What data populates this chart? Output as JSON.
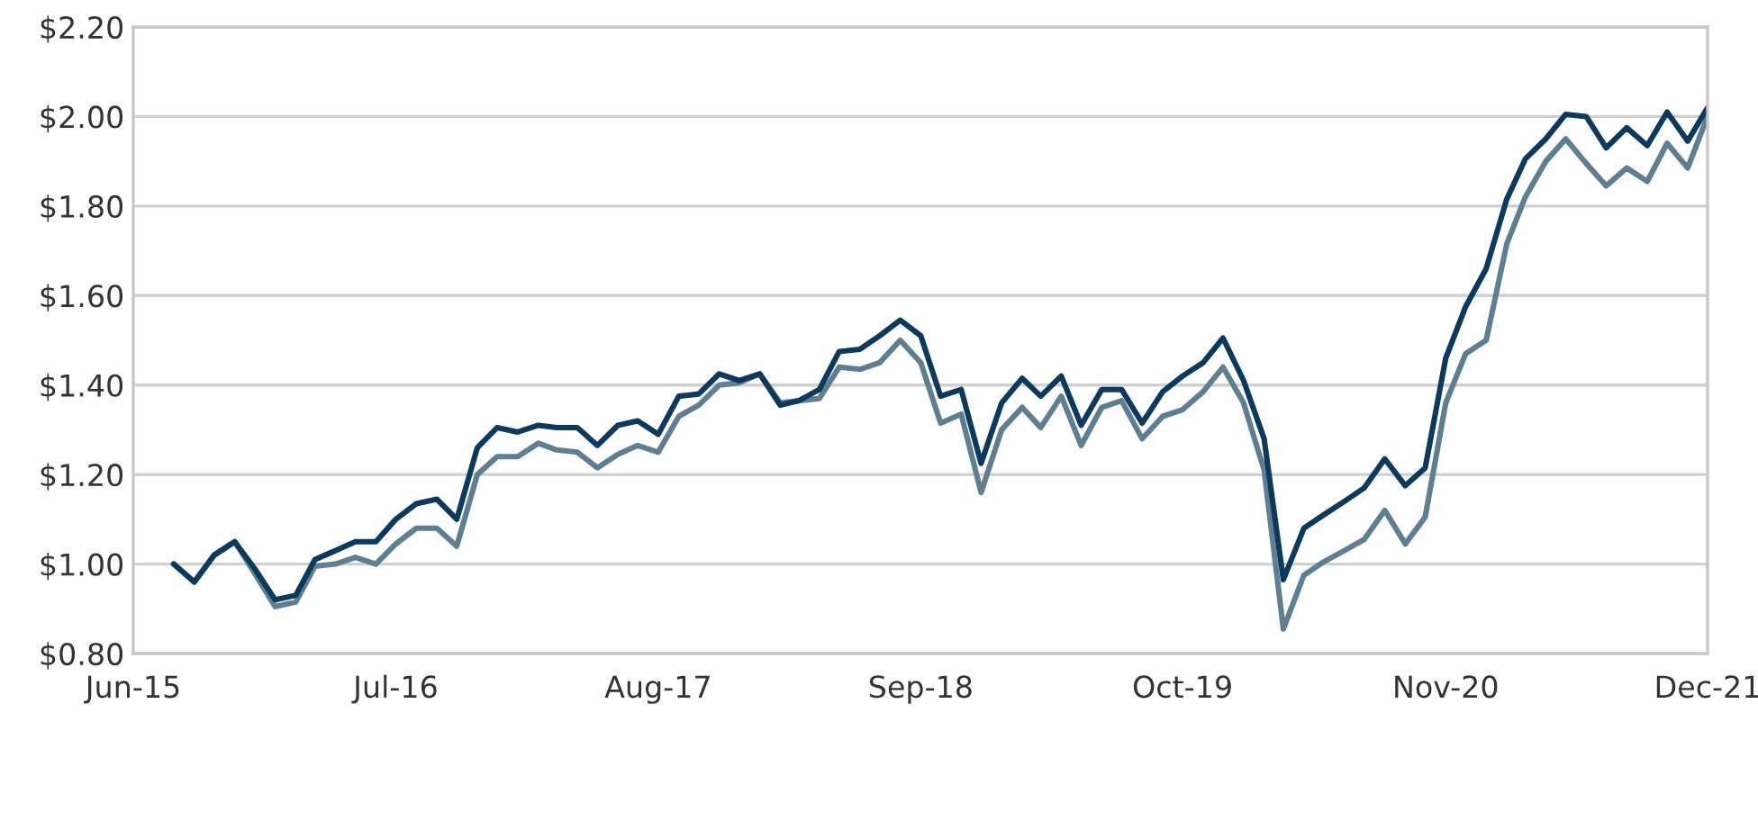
{
  "chart_data": {
    "type": "line",
    "x": [
      "2015-08",
      "2015-09",
      "2015-10",
      "2015-11",
      "2015-12",
      "2016-01",
      "2016-02",
      "2016-03",
      "2016-04",
      "2016-05",
      "2016-06",
      "2016-07",
      "2016-08",
      "2016-09",
      "2016-10",
      "2016-11",
      "2016-12",
      "2017-01",
      "2017-02",
      "2017-03",
      "2017-04",
      "2017-05",
      "2017-06",
      "2017-07",
      "2017-08",
      "2017-09",
      "2017-10",
      "2017-11",
      "2017-12",
      "2018-01",
      "2018-02",
      "2018-03",
      "2018-04",
      "2018-05",
      "2018-06",
      "2018-07",
      "2018-08",
      "2018-09",
      "2018-10",
      "2018-11",
      "2018-12",
      "2019-01",
      "2019-02",
      "2019-03",
      "2019-04",
      "2019-05",
      "2019-06",
      "2019-07",
      "2019-08",
      "2019-09",
      "2019-10",
      "2019-11",
      "2019-12",
      "2020-01",
      "2020-02",
      "2020-03",
      "2020-04",
      "2020-05",
      "2020-06",
      "2020-07",
      "2020-08",
      "2020-09",
      "2020-10",
      "2020-11",
      "2020-12",
      "2021-01",
      "2021-02",
      "2021-03",
      "2021-04",
      "2021-05",
      "2021-06",
      "2021-07",
      "2021-08",
      "2021-09",
      "2021-10",
      "2021-11",
      "2021-12"
    ],
    "series": [
      {
        "color": "#5e7f91",
        "values": [
          1.0,
          0.96,
          1.02,
          1.05,
          0.98,
          0.905,
          0.915,
          0.995,
          1.0,
          1.015,
          1.0,
          1.045,
          1.08,
          1.08,
          1.04,
          1.2,
          1.24,
          1.24,
          1.27,
          1.255,
          1.25,
          1.215,
          1.245,
          1.265,
          1.25,
          1.33,
          1.355,
          1.4,
          1.405,
          1.425,
          1.36,
          1.365,
          1.37,
          1.44,
          1.435,
          1.45,
          1.5,
          1.45,
          1.315,
          1.335,
          1.16,
          1.3,
          1.35,
          1.305,
          1.375,
          1.265,
          1.35,
          1.365,
          1.28,
          1.33,
          1.345,
          1.385,
          1.44,
          1.36,
          1.21,
          0.855,
          0.975,
          1.005,
          1.03,
          1.055,
          1.12,
          1.045,
          1.105,
          1.36,
          1.47,
          1.5,
          1.715,
          1.82,
          1.9,
          1.95,
          1.895,
          1.845,
          1.885,
          1.855,
          1.94,
          1.885,
          2.0
        ]
      },
      {
        "color": "#0b3a5e",
        "values": [
          1.0,
          0.96,
          1.02,
          1.05,
          0.99,
          0.92,
          0.93,
          1.01,
          1.03,
          1.05,
          1.05,
          1.1,
          1.135,
          1.145,
          1.1,
          1.26,
          1.305,
          1.295,
          1.31,
          1.305,
          1.305,
          1.265,
          1.31,
          1.32,
          1.29,
          1.375,
          1.38,
          1.425,
          1.41,
          1.425,
          1.355,
          1.365,
          1.39,
          1.475,
          1.48,
          1.51,
          1.545,
          1.51,
          1.375,
          1.39,
          1.225,
          1.36,
          1.415,
          1.375,
          1.42,
          1.31,
          1.39,
          1.39,
          1.315,
          1.385,
          1.42,
          1.45,
          1.505,
          1.41,
          1.28,
          0.965,
          1.08,
          1.11,
          1.14,
          1.17,
          1.235,
          1.175,
          1.215,
          1.46,
          1.575,
          1.66,
          1.815,
          1.905,
          1.95,
          2.005,
          2.0,
          1.93,
          1.975,
          1.935,
          2.01,
          1.945,
          2.02
        ]
      }
    ],
    "xlim": [
      "2015-06",
      "2021-12"
    ],
    "xticks": [
      {
        "value": "2015-06",
        "label": "Jun-15"
      },
      {
        "value": "2016-07",
        "label": "Jul-16"
      },
      {
        "value": "2017-08",
        "label": "Aug-17"
      },
      {
        "value": "2018-09",
        "label": "Sep-18"
      },
      {
        "value": "2019-10",
        "label": "Oct-19"
      },
      {
        "value": "2020-11",
        "label": "Nov-20"
      },
      {
        "value": "2021-12",
        "label": "Dec-21"
      }
    ],
    "ylim": [
      0.8,
      2.2
    ],
    "yticks": [
      {
        "value": 0.8,
        "label": "$0.80"
      },
      {
        "value": 1.0,
        "label": "$1.00"
      },
      {
        "value": 1.2,
        "label": "$1.20"
      },
      {
        "value": 1.4,
        "label": "$1.40"
      },
      {
        "value": 1.6,
        "label": "$1.60"
      },
      {
        "value": 1.8,
        "label": "$1.80"
      },
      {
        "value": 2.0,
        "label": "$2.00"
      },
      {
        "value": 2.2,
        "label": "$2.20"
      }
    ],
    "grid": "y",
    "marker": "none",
    "line_style": "solid"
  }
}
